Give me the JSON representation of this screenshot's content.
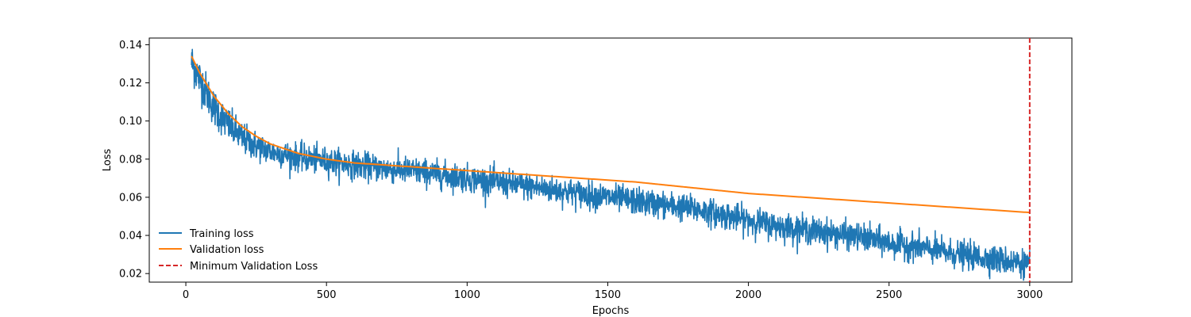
{
  "chart_data": {
    "type": "line",
    "xlabel": "Epochs",
    "ylabel": "Loss",
    "xlim": [
      -130,
      3150
    ],
    "ylim": [
      0.0155,
      0.1435
    ],
    "xticks": [
      0,
      500,
      1000,
      1500,
      2000,
      2500,
      3000
    ],
    "yticks": [
      0.02,
      0.04,
      0.06,
      0.08,
      0.1,
      0.12,
      0.14
    ],
    "legend_position": "lower-left",
    "series": [
      {
        "name": "Training loss",
        "color": "#1f77b4",
        "style": "solid",
        "x_range": [
          20,
          3000
        ],
        "noisy": true,
        "x": [
          20,
          50,
          100,
          150,
          200,
          250,
          300,
          400,
          500,
          600,
          700,
          800,
          900,
          1000,
          1100,
          1200,
          1300,
          1400,
          1500,
          1600,
          1700,
          1800,
          1900,
          2000,
          2100,
          2200,
          2300,
          2400,
          2500,
          2600,
          2700,
          2800,
          2900,
          3000
        ],
        "values": [
          0.131,
          0.122,
          0.107,
          0.098,
          0.091,
          0.087,
          0.084,
          0.081,
          0.079,
          0.077,
          0.075,
          0.074,
          0.072,
          0.07,
          0.068,
          0.066,
          0.064,
          0.062,
          0.06,
          0.058,
          0.056,
          0.054,
          0.051,
          0.048,
          0.045,
          0.043,
          0.041,
          0.039,
          0.036,
          0.034,
          0.031,
          0.029,
          0.027,
          0.025
        ]
      },
      {
        "name": "Validation loss",
        "color": "#ff7f0e",
        "style": "solid",
        "x": [
          20,
          50,
          100,
          150,
          200,
          250,
          300,
          400,
          500,
          600,
          700,
          800,
          900,
          1000,
          1200,
          1400,
          1600,
          1800,
          2000,
          2200,
          2400,
          2600,
          2800,
          3000
        ],
        "values": [
          0.134,
          0.125,
          0.113,
          0.104,
          0.097,
          0.092,
          0.088,
          0.083,
          0.08,
          0.078,
          0.077,
          0.076,
          0.075,
          0.074,
          0.072,
          0.07,
          0.068,
          0.065,
          0.062,
          0.06,
          0.058,
          0.056,
          0.054,
          0.052
        ]
      },
      {
        "name": "Minimum Validation Loss",
        "color": "#d62728",
        "style": "dashed",
        "type": "vline",
        "x": 3000
      }
    ]
  }
}
